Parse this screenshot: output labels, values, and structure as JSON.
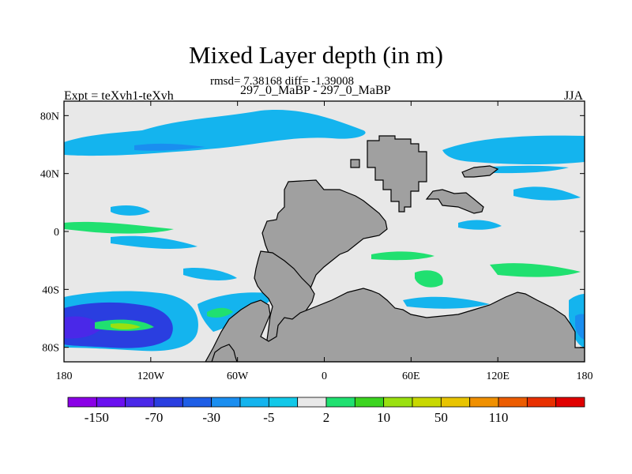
{
  "title": "Mixed Layer depth (in m)",
  "stats": "rmsd= 7.38168 diff= -1.39008",
  "case": "297_0_MaBP - 297_0_MaBP",
  "left_label": "Expt = teXvh1-teXvh",
  "right_label": "JJA",
  "chart_data": {
    "type": "heatmap",
    "title": "Mixed Layer depth (in m)",
    "xlim": [
      -180,
      180
    ],
    "ylim": [
      -90,
      90
    ],
    "x_ticks": [
      "180",
      "120W",
      "60W",
      "0",
      "60E",
      "120E",
      "180"
    ],
    "x_tick_values": [
      -180,
      -120,
      -60,
      0,
      60,
      120,
      180
    ],
    "y_ticks": [
      "80N",
      "40N",
      "0",
      "40S",
      "80S"
    ],
    "y_tick_values": [
      80,
      40,
      0,
      -40,
      -80
    ],
    "colorbar": {
      "labels": [
        "-150",
        "-70",
        "-30",
        "-5",
        "2",
        "10",
        "50",
        "110"
      ],
      "colors": [
        "#8a00e6",
        "#6a10f0",
        "#4a28e8",
        "#2a3ee0",
        "#1e5ee6",
        "#1a8ef0",
        "#14b4ee",
        "#12c8e8",
        "#e8e8e8",
        "#20e070",
        "#3cd420",
        "#9ae010",
        "#c8d800",
        "#e8c400",
        "#f09000",
        "#ec5c00",
        "#e83000",
        "#e00000"
      ]
    },
    "features": {
      "land_color": "#a0a0a0",
      "background_color": "#e8e8e8"
    }
  }
}
